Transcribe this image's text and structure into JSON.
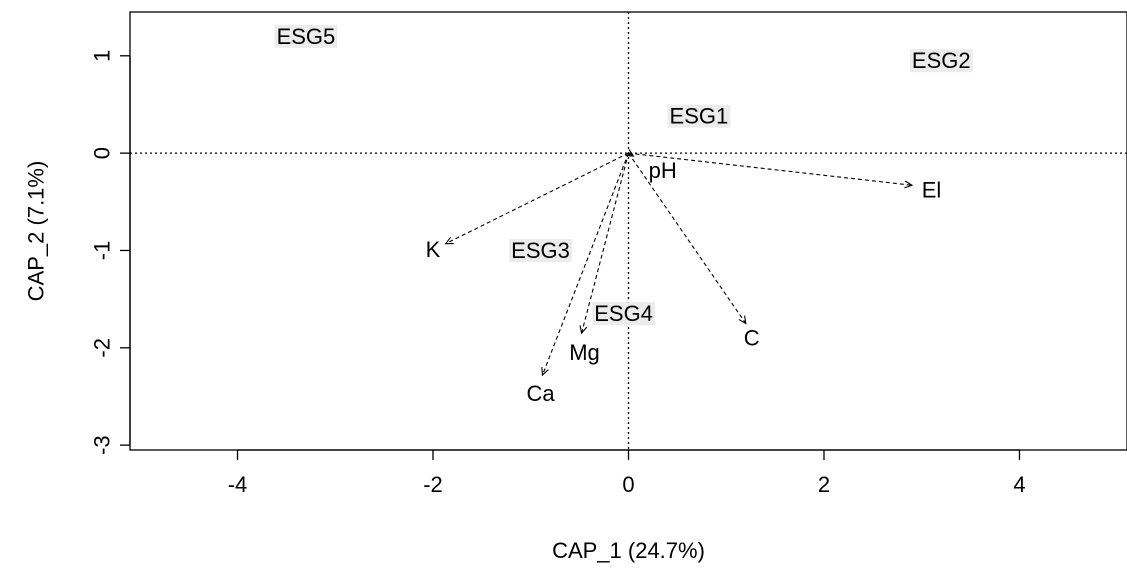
{
  "chart_data": {
    "type": "scatter",
    "title": "",
    "xlabel": "CAP_1 (24.7%)",
    "ylabel": "CAP_2 (7.1%)",
    "xlim": [
      -5.1,
      5.1
    ],
    "ylim": [
      -3.05,
      1.45
    ],
    "xticks": [
      -4,
      -2,
      0,
      2,
      4
    ],
    "yticks": [
      -3,
      -2,
      -1,
      0,
      1
    ],
    "xtick_labels": [
      "-4",
      "-2",
      "0",
      "2",
      "4"
    ],
    "ytick_labels": [
      "-3",
      "-2",
      "-1",
      "0",
      "1"
    ],
    "grid": false,
    "reference_lines": {
      "x": 0,
      "y": 0,
      "style": "dotted"
    },
    "group_centroids": [
      {
        "label": "ESG5",
        "x": -3.3,
        "y": 1.2
      },
      {
        "label": "ESG2",
        "x": 3.2,
        "y": 0.95
      },
      {
        "label": "ESG1",
        "x": 0.72,
        "y": 0.38
      },
      {
        "label": "ESG3",
        "x": -0.9,
        "y": -1.0
      },
      {
        "label": "ESG4",
        "x": -0.05,
        "y": -1.65
      }
    ],
    "vectors": [
      {
        "label": "pH",
        "x": 0.05,
        "y": -0.03,
        "label_x": 0.35,
        "label_y": -0.18
      },
      {
        "label": "El",
        "x": 2.9,
        "y": -0.33,
        "label_x": 3.1,
        "label_y": -0.38
      },
      {
        "label": "K",
        "x": -1.87,
        "y": -0.93,
        "label_x": -2.0,
        "label_y": -0.99
      },
      {
        "label": "C",
        "x": 1.2,
        "y": -1.75,
        "label_x": 1.26,
        "label_y": -1.9
      },
      {
        "label": "Mg",
        "x": -0.48,
        "y": -1.85,
        "label_x": -0.45,
        "label_y": -2.05
      },
      {
        "label": "Ca",
        "x": -0.88,
        "y": -2.28,
        "label_x": -0.9,
        "label_y": -2.47
      }
    ]
  }
}
